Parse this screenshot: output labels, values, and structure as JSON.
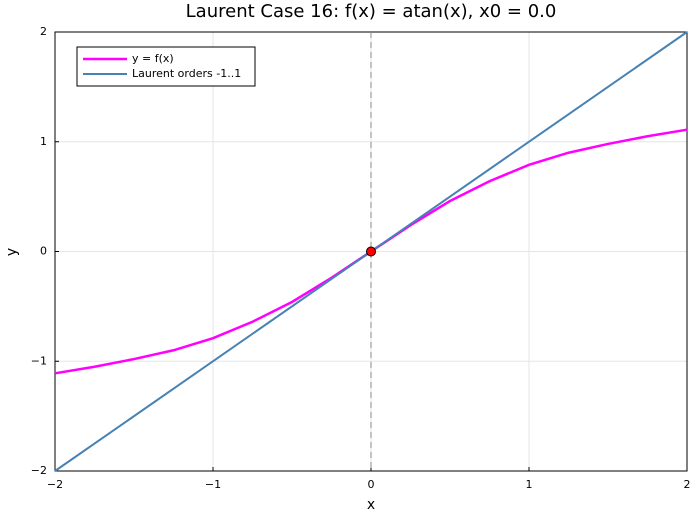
{
  "chart_data": {
    "type": "line",
    "title": "Laurent Case 16: f(x) = atan(x), x0 = 0.0",
    "x_label": "x",
    "y_label": "y",
    "series": [
      {
        "name": "y = f(x)",
        "color": "#ff00ff",
        "x": [
          -2,
          -1.75,
          -1.5,
          -1.25,
          -1,
          -0.75,
          -0.5,
          -0.25,
          0,
          0.25,
          0.5,
          0.75,
          1,
          1.25,
          1.5,
          1.75,
          2
        ],
        "values": [
          -1.11,
          -1.05,
          -0.98,
          -0.9,
          -0.79,
          -0.64,
          -0.46,
          -0.24,
          0,
          0.24,
          0.46,
          0.64,
          0.79,
          0.9,
          0.98,
          1.05,
          1.11
        ]
      },
      {
        "name": "Laurent orders -1..1",
        "color": "#4682b4",
        "x": [
          -2,
          2
        ],
        "values": [
          -2,
          2
        ]
      }
    ],
    "point": {
      "x": 0,
      "y": 0,
      "color": "#ff0000"
    },
    "vline": 0,
    "xlim": [
      -2,
      2
    ],
    "ylim": [
      -2,
      2
    ],
    "xticks": [
      {
        "value": -2,
        "label": "−2"
      },
      {
        "value": -1,
        "label": "−1"
      },
      0,
      1,
      2
    ],
    "yticks": [
      {
        "value": -2,
        "label": "−2"
      },
      {
        "value": -1,
        "label": "−1"
      },
      0,
      1,
      2
    ],
    "grid": true,
    "legend": "top-left"
  }
}
